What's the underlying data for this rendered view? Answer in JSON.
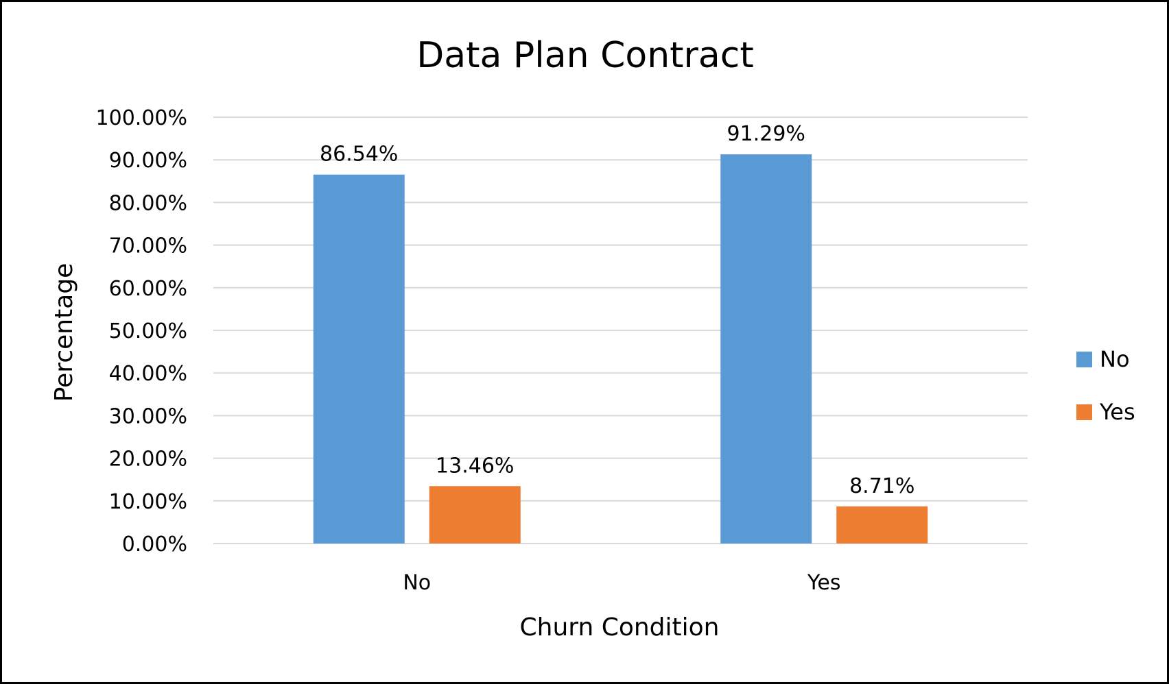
{
  "chart_data": {
    "type": "bar",
    "title": "Data Plan Contract",
    "xlabel": "Churn Condition",
    "ylabel": "Percentage",
    "categories": [
      "No",
      "Yes"
    ],
    "series": [
      {
        "name": "No",
        "color": "#5B9BD5",
        "values": [
          86.54,
          91.29
        ],
        "labels": [
          "86.54%",
          "91.29%"
        ]
      },
      {
        "name": "Yes",
        "color": "#ED7D31",
        "values": [
          13.46,
          8.71
        ],
        "labels": [
          "13.46%",
          "8.71%"
        ]
      }
    ],
    "ylim": [
      0,
      100
    ],
    "yticks": [
      "0.00%",
      "10.00%",
      "20.00%",
      "30.00%",
      "40.00%",
      "50.00%",
      "60.00%",
      "70.00%",
      "80.00%",
      "90.00%",
      "100.00%"
    ],
    "grid": true,
    "legend_position": "right",
    "gridline_color": "#D9D9D9"
  }
}
